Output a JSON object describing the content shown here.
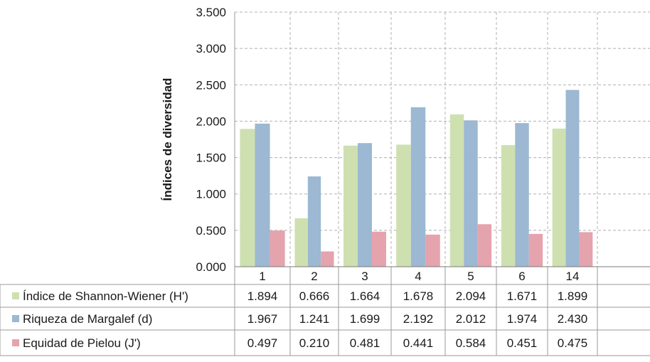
{
  "chart_data": {
    "type": "bar",
    "ylabel": "Índices de diversidad",
    "ylim": [
      0,
      3.5
    ],
    "yticks": [
      "0.000",
      "0.500",
      "1.000",
      "1.500",
      "2.000",
      "2.500",
      "3.000",
      "3.500"
    ],
    "grid": "dashed",
    "legend": "table-below",
    "categories": [
      "1",
      "2",
      "3",
      "4",
      "5",
      "6",
      "14"
    ],
    "series": [
      {
        "name": "Índice de Shannon-Wiener (H')",
        "color": "#cfe0b0",
        "values": [
          1.894,
          0.666,
          1.664,
          1.678,
          2.094,
          1.671,
          1.899
        ],
        "labels": [
          "1.894",
          "0.666",
          "1.664",
          "1.678",
          "2.094",
          "1.671",
          "1.899"
        ]
      },
      {
        "name": "Riqueza de Margalef (d)",
        "color": "#9cb8d2",
        "values": [
          1.967,
          1.241,
          1.699,
          2.192,
          2.012,
          1.974,
          2.43
        ],
        "labels": [
          "1.967",
          "1.241",
          "1.699",
          "2.192",
          "2.012",
          "1.974",
          "2.430"
        ]
      },
      {
        "name": "Equidad de Pielou (J')",
        "color": "#e5a3ad",
        "values": [
          0.497,
          0.21,
          0.481,
          0.441,
          0.584,
          0.451,
          0.475
        ],
        "labels": [
          "0.497",
          "0.210",
          "0.481",
          "0.441",
          "0.584",
          "0.451",
          "0.475"
        ]
      }
    ]
  }
}
